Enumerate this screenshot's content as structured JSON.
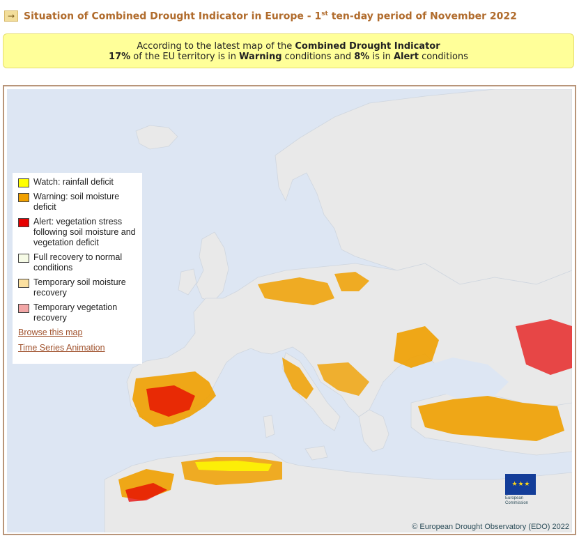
{
  "header": {
    "icon": "arrow-right-icon",
    "title_part1": "Situation of Combined Drought Indicator in Europe - 1",
    "title_sup": "st",
    "title_part2": " ten-day period of November 2022"
  },
  "summary": {
    "line1_prefix": "According to the latest map of the ",
    "line1_bold": "Combined Drought Indicator",
    "line2_p1": "17%",
    "line2_t1": " of the EU territory is in ",
    "line2_p2": "Warning",
    "line2_t2": " conditions and ",
    "line2_p3": "8%",
    "line2_t3": " is in ",
    "line2_p4": "Alert",
    "line2_t4": " conditions"
  },
  "legend": {
    "items": [
      {
        "label": "Watch: rainfall deficit",
        "color": "#ffff00"
      },
      {
        "label": "Warning: soil moisture deficit",
        "color": "#f0a000"
      },
      {
        "label": "Alert: vegetation stress following soil moisture and vegetation deficit",
        "color": "#e60000"
      },
      {
        "label": "Full recovery to normal conditions",
        "color": "#f6fbe6"
      },
      {
        "label": "Temporary soil moisture recovery",
        "color": "#fbe0a0"
      },
      {
        "label": "Temporary vegetation recovery",
        "color": "#f2a6a6"
      }
    ],
    "browse_link": "Browse this map",
    "animation_link": "Time Series Animation"
  },
  "logo": {
    "org": "European Commission",
    "flag_stars": "★ ★ ★"
  },
  "credit": "© European Drought Observatory (EDO) 2022",
  "colors": {
    "sea": "#dde6f3",
    "land": "#e9e9e9",
    "watch": "#ffff00",
    "warning": "#f0a000",
    "alert": "#e60000",
    "title": "#b06b2c"
  }
}
